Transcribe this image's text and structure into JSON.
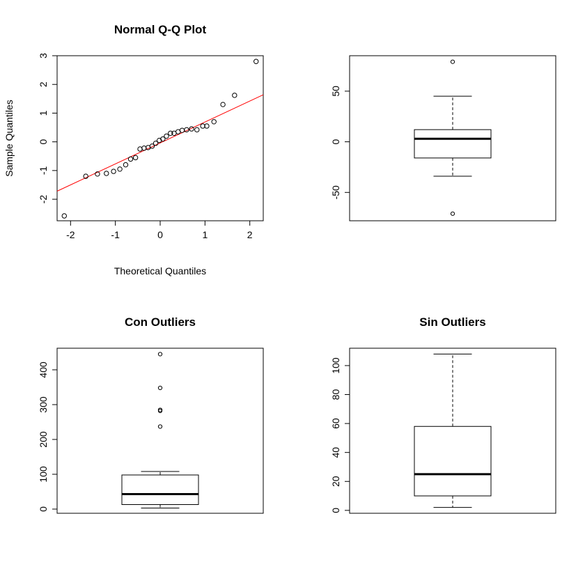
{
  "chart_data": [
    {
      "type": "scatter",
      "title": "Normal Q-Q Plot",
      "xlabel": "Theoretical Quantiles",
      "ylabel": "Sample Quantiles",
      "xlim": [
        -2.3,
        2.3
      ],
      "ylim": [
        -2.75,
        3.0
      ],
      "xticks": [
        -2,
        -1,
        0,
        1,
        2
      ],
      "yticks": [
        -2,
        -1,
        0,
        1,
        2,
        3
      ],
      "point_color": "#000000",
      "line_color": "#ff0000",
      "reference_line": {
        "intercept": -0.04,
        "slope": 0.73
      },
      "x": [
        -2.14,
        -1.66,
        -1.4,
        -1.2,
        -1.04,
        -0.9,
        -0.77,
        -0.66,
        -0.55,
        -0.45,
        -0.36,
        -0.27,
        -0.18,
        -0.1,
        -0.02,
        0.06,
        0.14,
        0.23,
        0.31,
        0.4,
        0.49,
        0.59,
        0.7,
        0.82,
        0.95,
        1.04,
        1.2,
        1.4,
        1.66,
        2.14
      ],
      "y": [
        -2.58,
        -1.2,
        -1.12,
        -1.1,
        -1.03,
        -0.95,
        -0.8,
        -0.6,
        -0.55,
        -0.25,
        -0.22,
        -0.2,
        -0.15,
        -0.05,
        0.05,
        0.1,
        0.2,
        0.3,
        0.3,
        0.35,
        0.4,
        0.42,
        0.45,
        0.42,
        0.55,
        0.55,
        0.7,
        1.3,
        1.62,
        2.8
      ]
    },
    {
      "type": "box",
      "title": "",
      "ylim": [
        -78,
        85
      ],
      "yticks": [
        -50,
        0,
        50
      ],
      "whisker_low": -34,
      "q1": -16,
      "median": 3,
      "q3": 12,
      "whisker_high": 45,
      "outliers": [
        79,
        -71
      ]
    },
    {
      "type": "box",
      "title": "Con Outliers",
      "ylim": [
        -12,
        462
      ],
      "yticks": [
        0,
        100,
        200,
        300,
        400
      ],
      "whisker_low": 3,
      "q1": 13,
      "median": 43,
      "q3": 98,
      "whisker_high": 108,
      "outliers": [
        445,
        348,
        285,
        282,
        237
      ]
    },
    {
      "type": "box",
      "title": "Sin Outliers",
      "ylim": [
        -2,
        112
      ],
      "yticks": [
        0,
        20,
        40,
        60,
        80,
        100
      ],
      "whisker_low": 2,
      "q1": 10,
      "median": 25,
      "q3": 58,
      "whisker_high": 108,
      "outliers": []
    }
  ]
}
